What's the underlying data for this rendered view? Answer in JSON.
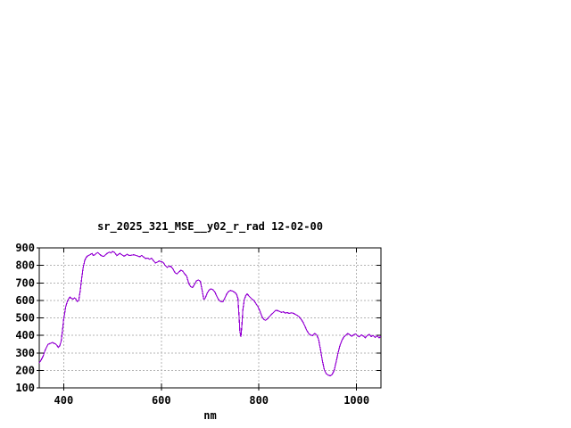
{
  "window": {
    "background_color": "#ffffff"
  },
  "chart_data": {
    "type": "line",
    "title": "sr_2025_321_MSE__y02_r_rad 12-02-00",
    "xlabel": "nm",
    "ylabel": "",
    "xlim": [
      350,
      1050
    ],
    "ylim": [
      100,
      900
    ],
    "x_ticks": [
      400,
      600,
      800,
      1000
    ],
    "y_ticks": [
      100,
      200,
      300,
      400,
      500,
      600,
      700,
      800,
      900
    ],
    "grid": true,
    "legend_position": "none",
    "line_color": "#9400d3",
    "grid_color": "#b4b4b4",
    "axis_color": "#000000",
    "text_color": "#000000",
    "series": [
      {
        "name": "sr_2025_321_MSE__y02_r_rad",
        "points": [
          [
            350,
            242
          ],
          [
            354,
            260
          ],
          [
            358,
            282
          ],
          [
            362,
            315
          ],
          [
            365,
            333
          ],
          [
            368,
            348
          ],
          [
            371,
            352
          ],
          [
            374,
            356
          ],
          [
            377,
            360
          ],
          [
            380,
            355
          ],
          [
            383,
            351
          ],
          [
            386,
            344
          ],
          [
            389,
            331
          ],
          [
            392,
            341
          ],
          [
            395,
            367
          ],
          [
            398,
            440
          ],
          [
            400,
            495
          ],
          [
            402,
            525
          ],
          [
            404,
            560
          ],
          [
            407,
            590
          ],
          [
            410,
            609
          ],
          [
            413,
            618
          ],
          [
            416,
            611
          ],
          [
            419,
            607
          ],
          [
            422,
            614
          ],
          [
            425,
            608
          ],
          [
            428,
            593
          ],
          [
            431,
            601
          ],
          [
            434,
            658
          ],
          [
            437,
            727
          ],
          [
            440,
            787
          ],
          [
            443,
            827
          ],
          [
            446,
            845
          ],
          [
            449,
            854
          ],
          [
            452,
            858
          ],
          [
            455,
            863
          ],
          [
            458,
            868
          ],
          [
            461,
            856
          ],
          [
            464,
            861
          ],
          [
            467,
            869
          ],
          [
            470,
            873
          ],
          [
            473,
            866
          ],
          [
            476,
            858
          ],
          [
            479,
            853
          ],
          [
            482,
            851
          ],
          [
            485,
            858
          ],
          [
            488,
            866
          ],
          [
            491,
            872
          ],
          [
            494,
            876
          ],
          [
            497,
            871
          ],
          [
            500,
            879
          ],
          [
            503,
            877
          ],
          [
            506,
            867
          ],
          [
            509,
            856
          ],
          [
            512,
            862
          ],
          [
            515,
            869
          ],
          [
            518,
            863
          ],
          [
            521,
            857
          ],
          [
            524,
            852
          ],
          [
            527,
            858
          ],
          [
            530,
            863
          ],
          [
            533,
            858
          ],
          [
            536,
            856
          ],
          [
            540,
            859
          ],
          [
            544,
            861
          ],
          [
            548,
            857
          ],
          [
            552,
            853
          ],
          [
            556,
            849
          ],
          [
            560,
            857
          ],
          [
            564,
            847
          ],
          [
            568,
            839
          ],
          [
            572,
            842
          ],
          [
            576,
            835
          ],
          [
            580,
            841
          ],
          [
            584,
            827
          ],
          [
            588,
            814
          ],
          [
            592,
            819
          ],
          [
            596,
            825
          ],
          [
            600,
            821
          ],
          [
            604,
            817
          ],
          [
            608,
            799
          ],
          [
            612,
            789
          ],
          [
            616,
            795
          ],
          [
            620,
            794
          ],
          [
            624,
            779
          ],
          [
            628,
            759
          ],
          [
            632,
            751
          ],
          [
            636,
            762
          ],
          [
            640,
            772
          ],
          [
            644,
            767
          ],
          [
            648,
            751
          ],
          [
            652,
            739
          ],
          [
            656,
            699
          ],
          [
            660,
            679
          ],
          [
            664,
            673
          ],
          [
            668,
            691
          ],
          [
            672,
            711
          ],
          [
            676,
            717
          ],
          [
            680,
            709
          ],
          [
            684,
            654
          ],
          [
            687,
            606
          ],
          [
            690,
            612
          ],
          [
            694,
            641
          ],
          [
            698,
            659
          ],
          [
            702,
            666
          ],
          [
            706,
            660
          ],
          [
            710,
            647
          ],
          [
            714,
            621
          ],
          [
            718,
            602
          ],
          [
            722,
            594
          ],
          [
            726,
            591
          ],
          [
            730,
            611
          ],
          [
            734,
            636
          ],
          [
            738,
            652
          ],
          [
            742,
            657
          ],
          [
            746,
            653
          ],
          [
            750,
            646
          ],
          [
            754,
            637
          ],
          [
            757,
            611
          ],
          [
            759,
            520
          ],
          [
            761,
            424
          ],
          [
            763,
            391
          ],
          [
            765,
            455
          ],
          [
            767,
            544
          ],
          [
            770,
            604
          ],
          [
            773,
            627
          ],
          [
            776,
            637
          ],
          [
            779,
            627
          ],
          [
            782,
            617
          ],
          [
            786,
            606
          ],
          [
            790,
            599
          ],
          [
            794,
            581
          ],
          [
            798,
            564
          ],
          [
            802,
            539
          ],
          [
            806,
            509
          ],
          [
            810,
            491
          ],
          [
            814,
            486
          ],
          [
            818,
            497
          ],
          [
            822,
            509
          ],
          [
            826,
            521
          ],
          [
            830,
            531
          ],
          [
            834,
            543
          ],
          [
            838,
            542
          ],
          [
            842,
            537
          ],
          [
            846,
            531
          ],
          [
            850,
            535
          ],
          [
            854,
            527
          ],
          [
            858,
            531
          ],
          [
            862,
            525
          ],
          [
            866,
            529
          ],
          [
            870,
            527
          ],
          [
            874,
            521
          ],
          [
            878,
            515
          ],
          [
            882,
            507
          ],
          [
            886,
            493
          ],
          [
            890,
            477
          ],
          [
            894,
            454
          ],
          [
            898,
            429
          ],
          [
            902,
            411
          ],
          [
            906,
            401
          ],
          [
            910,
            399
          ],
          [
            914,
            411
          ],
          [
            918,
            404
          ],
          [
            922,
            379
          ],
          [
            926,
            319
          ],
          [
            930,
            257
          ],
          [
            934,
            204
          ],
          [
            938,
            181
          ],
          [
            942,
            173
          ],
          [
            946,
            169
          ],
          [
            950,
            177
          ],
          [
            954,
            199
          ],
          [
            958,
            247
          ],
          [
            962,
            299
          ],
          [
            966,
            341
          ],
          [
            970,
            371
          ],
          [
            974,
            391
          ],
          [
            978,
            401
          ],
          [
            982,
            411
          ],
          [
            986,
            404
          ],
          [
            990,
            394
          ],
          [
            994,
            403
          ],
          [
            998,
            409
          ],
          [
            1002,
            397
          ],
          [
            1006,
            392
          ],
          [
            1010,
            403
          ],
          [
            1014,
            396
          ],
          [
            1018,
            387
          ],
          [
            1022,
            399
          ],
          [
            1026,
            406
          ],
          [
            1030,
            393
          ],
          [
            1034,
            399
          ],
          [
            1038,
            389
          ],
          [
            1042,
            397
          ],
          [
            1046,
            386
          ],
          [
            1050,
            395
          ]
        ]
      }
    ]
  }
}
